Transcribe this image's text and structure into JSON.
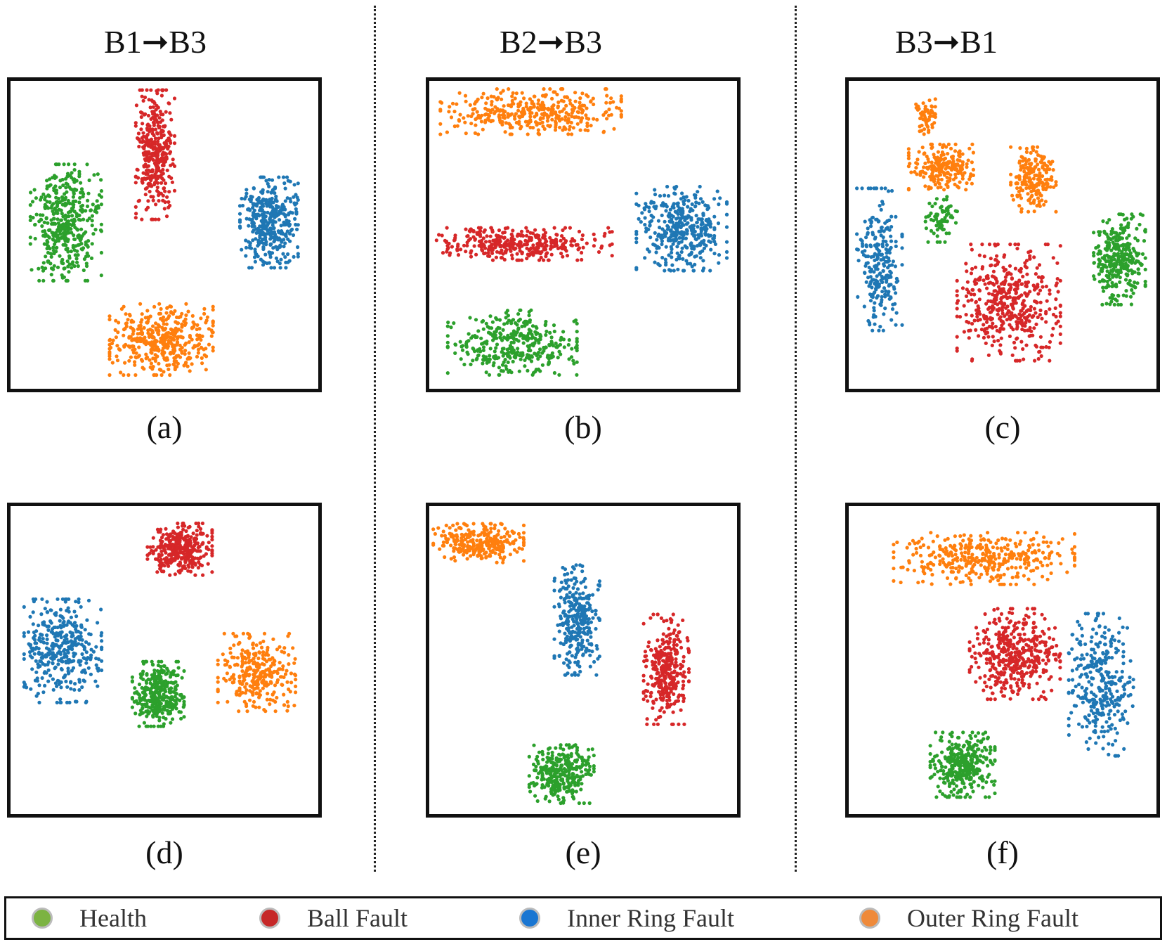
{
  "column_titles": [
    "B1➞B3",
    "B2➞B3",
    "B3➞B1"
  ],
  "legend": [
    {
      "label": "Health",
      "color": "#7cb342"
    },
    {
      "label": "Ball Fault",
      "color": "#c62828"
    },
    {
      "label": "Inner Ring Fault",
      "color": "#1976d2"
    },
    {
      "label": "Outer Ring Fault",
      "color": "#ef8a3a"
    }
  ],
  "class_colors": {
    "health": "#2ca02c",
    "ball": "#d62728",
    "inner": "#1f77b4",
    "outer": "#ff7f0e"
  },
  "chart_data": [
    {
      "type": "scatter",
      "caption": "(a)",
      "clusters": [
        {
          "class": "health",
          "cx": 0.18,
          "cy": 0.46,
          "rx": 0.11,
          "ry": 0.18,
          "n": 420
        },
        {
          "class": "ball",
          "cx": 0.47,
          "cy": 0.24,
          "rx": 0.06,
          "ry": 0.2,
          "n": 360
        },
        {
          "class": "inner",
          "cx": 0.84,
          "cy": 0.46,
          "rx": 0.09,
          "ry": 0.14,
          "n": 380
        },
        {
          "class": "outer",
          "cx": 0.49,
          "cy": 0.84,
          "rx": 0.16,
          "ry": 0.11,
          "n": 420
        }
      ]
    },
    {
      "type": "scatter",
      "caption": "(b)",
      "clusters": [
        {
          "class": "outer",
          "cx": 0.33,
          "cy": 0.1,
          "rx": 0.28,
          "ry": 0.07,
          "n": 380
        },
        {
          "class": "ball",
          "cx": 0.3,
          "cy": 0.53,
          "rx": 0.28,
          "ry": 0.05,
          "n": 360
        },
        {
          "class": "inner",
          "cx": 0.82,
          "cy": 0.48,
          "rx": 0.14,
          "ry": 0.13,
          "n": 380
        },
        {
          "class": "health",
          "cx": 0.27,
          "cy": 0.85,
          "rx": 0.2,
          "ry": 0.1,
          "n": 360
        }
      ]
    },
    {
      "type": "scatter",
      "caption": "(c)",
      "clusters": [
        {
          "class": "outer",
          "cx": 0.3,
          "cy": 0.28,
          "rx": 0.1,
          "ry": 0.07,
          "n": 220
        },
        {
          "class": "outer",
          "cx": 0.6,
          "cy": 0.32,
          "rx": 0.07,
          "ry": 0.1,
          "n": 200
        },
        {
          "class": "outer",
          "cx": 0.25,
          "cy": 0.11,
          "rx": 0.03,
          "ry": 0.06,
          "n": 60
        },
        {
          "class": "inner",
          "cx": 0.1,
          "cy": 0.58,
          "rx": 0.07,
          "ry": 0.22,
          "n": 240
        },
        {
          "class": "health",
          "cx": 0.3,
          "cy": 0.45,
          "rx": 0.05,
          "ry": 0.07,
          "n": 70
        },
        {
          "class": "ball",
          "cx": 0.52,
          "cy": 0.72,
          "rx": 0.16,
          "ry": 0.18,
          "n": 460
        },
        {
          "class": "health",
          "cx": 0.88,
          "cy": 0.58,
          "rx": 0.08,
          "ry": 0.14,
          "n": 320
        }
      ]
    },
    {
      "type": "scatter",
      "caption": "(d)",
      "clusters": [
        {
          "class": "ball",
          "cx": 0.55,
          "cy": 0.14,
          "rx": 0.1,
          "ry": 0.08,
          "n": 320
        },
        {
          "class": "inner",
          "cx": 0.17,
          "cy": 0.47,
          "rx": 0.12,
          "ry": 0.16,
          "n": 360
        },
        {
          "class": "health",
          "cx": 0.48,
          "cy": 0.61,
          "rx": 0.08,
          "ry": 0.1,
          "n": 340
        },
        {
          "class": "outer",
          "cx": 0.8,
          "cy": 0.54,
          "rx": 0.12,
          "ry": 0.12,
          "n": 300
        }
      ]
    },
    {
      "type": "scatter",
      "caption": "(e)",
      "clusters": [
        {
          "class": "outer",
          "cx": 0.16,
          "cy": 0.12,
          "rx": 0.14,
          "ry": 0.06,
          "n": 280
        },
        {
          "class": "inner",
          "cx": 0.48,
          "cy": 0.37,
          "rx": 0.07,
          "ry": 0.17,
          "n": 300
        },
        {
          "class": "ball",
          "cx": 0.77,
          "cy": 0.53,
          "rx": 0.07,
          "ry": 0.17,
          "n": 320
        },
        {
          "class": "health",
          "cx": 0.43,
          "cy": 0.87,
          "rx": 0.1,
          "ry": 0.09,
          "n": 320
        }
      ]
    },
    {
      "type": "scatter",
      "caption": "(f)",
      "clusters": [
        {
          "class": "outer",
          "cx": 0.44,
          "cy": 0.17,
          "rx": 0.28,
          "ry": 0.08,
          "n": 380
        },
        {
          "class": "ball",
          "cx": 0.54,
          "cy": 0.48,
          "rx": 0.14,
          "ry": 0.14,
          "n": 420
        },
        {
          "class": "inner",
          "cx": 0.82,
          "cy": 0.58,
          "rx": 0.1,
          "ry": 0.22,
          "n": 320
        },
        {
          "class": "health",
          "cx": 0.37,
          "cy": 0.84,
          "rx": 0.1,
          "ry": 0.1,
          "n": 340
        }
      ]
    }
  ]
}
